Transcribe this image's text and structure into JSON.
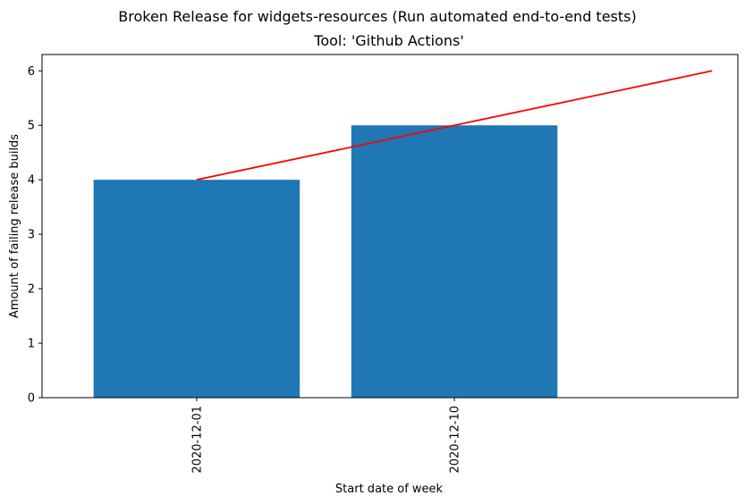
{
  "chart_data": {
    "type": "bar",
    "suptitle": "Broken Release for widgets-resources (Run automated end-to-end tests)",
    "title": "Tool: 'Github Actions'",
    "xlabel": "Start date of week",
    "ylabel": "Amount of failing release builds",
    "categories": [
      "2020-12-01",
      "2020-12-10"
    ],
    "values": [
      4,
      5
    ],
    "ylim": [
      0,
      6.3
    ],
    "yticks": [
      "0",
      "1",
      "2",
      "3",
      "4",
      "5",
      "6"
    ],
    "trend_line": {
      "x": [
        0,
        1,
        2
      ],
      "y": [
        4,
        5,
        6
      ]
    },
    "grid": false,
    "legend": "none",
    "colors": {
      "bar": "#1f77b4",
      "trend": "#ff0000"
    }
  }
}
